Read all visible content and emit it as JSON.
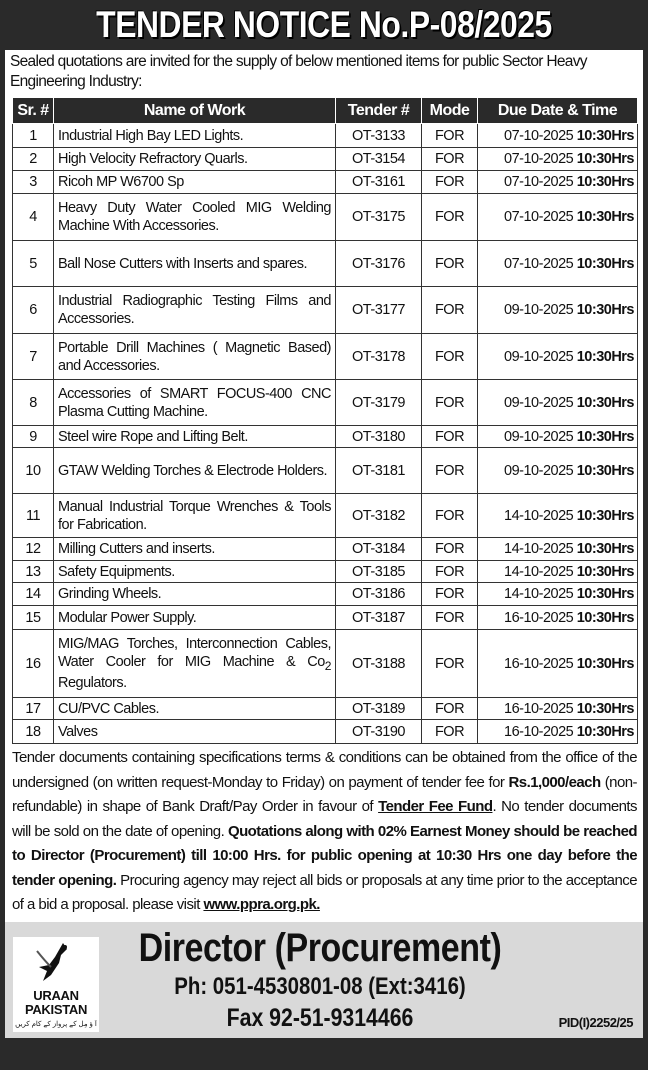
{
  "title": "TENDER NOTICE No.P-08/2025",
  "intro": "Sealed quotations are invited for the supply of below mentioned items for public Sector Heavy Engineering Industry:",
  "table": {
    "headers": [
      "Sr. #",
      "Name of Work",
      "Tender #",
      "Mode",
      "Due Date & Time"
    ],
    "rows": [
      {
        "sr": "1",
        "name": "Industrial High Bay LED Lights.",
        "tender": "OT-3133",
        "mode": "FOR",
        "date": "07-10-2025",
        "time": "10:30Hrs"
      },
      {
        "sr": "2",
        "name": "High Velocity Refractory Quarls.",
        "tender": "OT-3154",
        "mode": "FOR",
        "date": "07-10-2025",
        "time": "10:30Hrs"
      },
      {
        "sr": "3",
        "name": "Ricoh MP W6700 Sp",
        "tender": "OT-3161",
        "mode": "FOR",
        "date": "07-10-2025",
        "time": "10:30Hrs"
      },
      {
        "sr": "4",
        "name": "Heavy Duty Water Cooled MIG Welding Machine With Accessories.",
        "tender": "OT-3175",
        "mode": "FOR",
        "date": "07-10-2025",
        "time": "10:30Hrs"
      },
      {
        "sr": "5",
        "name": "Ball Nose Cutters with Inserts and spares.",
        "tender": "OT-3176",
        "mode": "FOR",
        "date": "07-10-2025",
        "time": "10:30Hrs"
      },
      {
        "sr": "6",
        "name": "Industrial Radiographic Testing Films and Accessories.",
        "tender": "OT-3177",
        "mode": "FOR",
        "date": "09-10-2025",
        "time": "10:30Hrs"
      },
      {
        "sr": "7",
        "name": "Portable Drill Machines ( Magnetic Based) and Accessories.",
        "tender": "OT-3178",
        "mode": "FOR",
        "date": "09-10-2025",
        "time": "10:30Hrs"
      },
      {
        "sr": "8",
        "name": "Accessories of SMART FOCUS-400 CNC Plasma Cutting Machine.",
        "tender": "OT-3179",
        "mode": "FOR",
        "date": "09-10-2025",
        "time": "10:30Hrs"
      },
      {
        "sr": "9",
        "name": "Steel wire Rope and Lifting Belt.",
        "tender": "OT-3180",
        "mode": "FOR",
        "date": "09-10-2025",
        "time": "10:30Hrs"
      },
      {
        "sr": "10",
        "name": "GTAW Welding Torches & Electrode Holders.",
        "tender": "OT-3181",
        "mode": "FOR",
        "date": "09-10-2025",
        "time": "10:30Hrs"
      },
      {
        "sr": "11",
        "name": "Manual Industrial Torque Wrenches & Tools for Fabrication.",
        "tender": "OT-3182",
        "mode": "FOR",
        "date": "14-10-2025",
        "time": "10:30Hrs"
      },
      {
        "sr": "12",
        "name": "Milling Cutters and inserts.",
        "tender": "OT-3184",
        "mode": "FOR",
        "date": "14-10-2025",
        "time": "10:30Hrs"
      },
      {
        "sr": "13",
        "name": "Safety Equipments.",
        "tender": "OT-3185",
        "mode": "FOR",
        "date": "14-10-2025",
        "time": "10:30Hrs"
      },
      {
        "sr": "14",
        "name": "Grinding Wheels.",
        "tender": "OT-3186",
        "mode": "FOR",
        "date": "14-10-2025",
        "time": "10:30Hrs"
      },
      {
        "sr": "15",
        "name": "Modular Power Supply.",
        "tender": "OT-3187",
        "mode": "FOR",
        "date": "16-10-2025",
        "time": "10:30Hrs"
      },
      {
        "sr": "16",
        "name": "MIG/MAG Torches, Interconnection Cables, Water Cooler for MIG Machine & Co",
        "name_sub": "2",
        "name_tail": " Regulators.",
        "tender": "OT-3188",
        "mode": "FOR",
        "date": "16-10-2025",
        "time": "10:30Hrs"
      },
      {
        "sr": "17",
        "name": "CU/PVC Cables.",
        "tender": "OT-3189",
        "mode": "FOR",
        "date": "16-10-2025",
        "time": "10:30Hrs"
      },
      {
        "sr": "18",
        "name": "Valves",
        "tender": "OT-3190",
        "mode": "FOR",
        "date": "16-10-2025",
        "time": "10:30Hrs"
      }
    ]
  },
  "body": {
    "p1": "Tender documents containing specifications terms & conditions can be obtained from the office of the undersigned (on written request-Monday to Friday) on payment of tender fee for ",
    "fee": "Rs.1,000/each",
    "p2": " (non-refundable) in shape of Bank Draft/Pay Order in favour of ",
    "fund": "Tender Fee Fund",
    "p3": ". No tender documents will be sold on the date of opening. ",
    "bold": "Quotations along with 02% Earnest Money should be reached to Director (Procurement) till 10:00 Hrs. for public opening at 10:30 Hrs one day before the tender opening.",
    "p4": " Procuring agency may reject all bids or proposals at any time prior to the acceptance of a bid a proposal. please visit ",
    "link": "www.ppra.org.pk."
  },
  "footer": {
    "director": "Director (Procurement)",
    "phone": "Ph: 051-4530801-08 (Ext:3416)",
    "fax": "Fax 92-51-9314466",
    "pid": "PID(I)2252/25",
    "logo_text": "URAAN PAKISTAN",
    "logo_tagline": "آ ؤ مِل کے پرواز کے کام کریں"
  }
}
